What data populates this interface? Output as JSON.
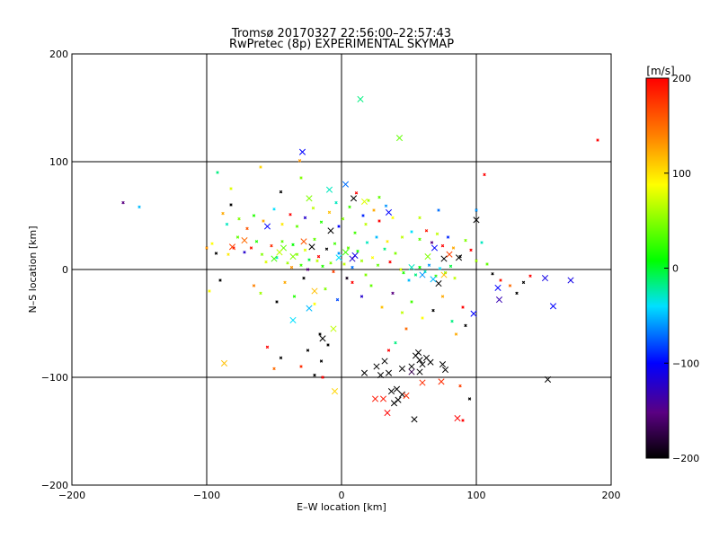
{
  "chart_data": {
    "type": "scatter",
    "title_line1": "Tromsø 20170327 22:56:00–22:57:43",
    "title_line2": "RwPretec (8p) EXPERIMENTAL SKYMAP",
    "xlabel": "E–W location [km]",
    "ylabel": "N–S location [km]",
    "xlim": [
      -200,
      200
    ],
    "ylim": [
      -200,
      200
    ],
    "xticks": [
      -200,
      -100,
      0,
      100,
      200
    ],
    "yticks": [
      -200,
      -100,
      0,
      100,
      200
    ],
    "grid": true,
    "colorbar": {
      "label": "[m/s]",
      "range": [
        -200,
        200
      ],
      "ticks": [
        200,
        100,
        0,
        -100,
        -200
      ],
      "colormap": [
        "#000000",
        "#5a0082",
        "#0000ff",
        "#00e0ff",
        "#00ff00",
        "#ffff00",
        "#ff8000",
        "#ff0000"
      ]
    },
    "points_large": [
      {
        "x": 14,
        "y": 158,
        "v": -20
      },
      {
        "x": 43,
        "y": 122,
        "v": 30
      },
      {
        "x": -29,
        "y": 109,
        "v": -100
      },
      {
        "x": 3,
        "y": 79,
        "v": -70
      },
      {
        "x": 9,
        "y": 66,
        "v": -200
      },
      {
        "x": -24,
        "y": 66,
        "v": 40
      },
      {
        "x": -9,
        "y": 74,
        "v": -30
      },
      {
        "x": 17,
        "y": 63,
        "v": 70
      },
      {
        "x": 100,
        "y": 46,
        "v": -200
      },
      {
        "x": -55,
        "y": 40,
        "v": -100
      },
      {
        "x": -72,
        "y": 27,
        "v": 150
      },
      {
        "x": -81,
        "y": 21,
        "v": 170
      },
      {
        "x": -43,
        "y": 20,
        "v": 30
      },
      {
        "x": -28,
        "y": 26,
        "v": 160
      },
      {
        "x": -22,
        "y": 21,
        "v": -200
      },
      {
        "x": -8,
        "y": 36,
        "v": -200
      },
      {
        "x": 10,
        "y": 13,
        "v": -110
      },
      {
        "x": 8,
        "y": 10,
        "v": -120
      },
      {
        "x": 69,
        "y": 20,
        "v": -100
      },
      {
        "x": 76,
        "y": 10,
        "v": -200
      },
      {
        "x": 87,
        "y": 11,
        "v": -200
      },
      {
        "x": 76,
        "y": -5,
        "v": 110
      },
      {
        "x": 72,
        "y": -13,
        "v": -200
      },
      {
        "x": 60,
        "y": -5,
        "v": -60
      },
      {
        "x": 80,
        "y": 14,
        "v": 170
      },
      {
        "x": 151,
        "y": -8,
        "v": -110
      },
      {
        "x": 170,
        "y": -10,
        "v": -110
      },
      {
        "x": 157,
        "y": -34,
        "v": -100
      },
      {
        "x": -20,
        "y": -20,
        "v": 110
      },
      {
        "x": -24,
        "y": -36,
        "v": -50
      },
      {
        "x": -36,
        "y": -47,
        "v": -40
      },
      {
        "x": -6,
        "y": -55,
        "v": 60
      },
      {
        "x": -14,
        "y": -64,
        "v": -200
      },
      {
        "x": -87,
        "y": -87,
        "v": 110
      },
      {
        "x": -5,
        "y": -113,
        "v": 100
      },
      {
        "x": 32,
        "y": -85,
        "v": -200
      },
      {
        "x": 26,
        "y": -90,
        "v": -200
      },
      {
        "x": 17,
        "y": -96,
        "v": -200
      },
      {
        "x": 29,
        "y": -98,
        "v": -200
      },
      {
        "x": 35,
        "y": -96,
        "v": -200
      },
      {
        "x": 45,
        "y": -92,
        "v": -200
      },
      {
        "x": 52,
        "y": -90,
        "v": -200
      },
      {
        "x": 55,
        "y": -80,
        "v": -200
      },
      {
        "x": 58,
        "y": -84,
        "v": -200
      },
      {
        "x": 60,
        "y": -88,
        "v": -200
      },
      {
        "x": 63,
        "y": -82,
        "v": -200
      },
      {
        "x": 66,
        "y": -86,
        "v": -200
      },
      {
        "x": 58,
        "y": -95,
        "v": -200
      },
      {
        "x": 52,
        "y": -95,
        "v": -170
      },
      {
        "x": 57,
        "y": -77,
        "v": -200
      },
      {
        "x": 75,
        "y": -88,
        "v": -200
      },
      {
        "x": 77,
        "y": -93,
        "v": -200
      },
      {
        "x": 74,
        "y": -104,
        "v": 180
      },
      {
        "x": 41,
        "y": -111,
        "v": -200
      },
      {
        "x": 42,
        "y": -121,
        "v": -200
      },
      {
        "x": 39,
        "y": -124,
        "v": -200
      },
      {
        "x": 45,
        "y": -116,
        "v": -200
      },
      {
        "x": 37,
        "y": -113,
        "v": -200
      },
      {
        "x": 31,
        "y": -120,
        "v": 190
      },
      {
        "x": 25,
        "y": -120,
        "v": 190
      },
      {
        "x": 34,
        "y": -133,
        "v": 200
      },
      {
        "x": 54,
        "y": -139,
        "v": -200
      },
      {
        "x": 86,
        "y": -138,
        "v": 200
      },
      {
        "x": 48,
        "y": -117,
        "v": 180
      },
      {
        "x": 60,
        "y": -105,
        "v": 180
      },
      {
        "x": 153,
        "y": -102,
        "v": -200
      },
      {
        "x": -36,
        "y": 12,
        "v": 40
      },
      {
        "x": -46,
        "y": 16,
        "v": 60
      },
      {
        "x": -50,
        "y": 10,
        "v": 20
      },
      {
        "x": 3,
        "y": 16,
        "v": 20
      },
      {
        "x": -2,
        "y": 11,
        "v": -40
      },
      {
        "x": 68,
        "y": -9,
        "v": -50
      },
      {
        "x": 52,
        "y": 2,
        "v": -30
      },
      {
        "x": 64,
        "y": 12,
        "v": 40
      },
      {
        "x": 98,
        "y": -41,
        "v": -100
      },
      {
        "x": 116,
        "y": -17,
        "v": -100
      },
      {
        "x": 117,
        "y": -28,
        "v": -130
      },
      {
        "x": 35,
        "y": 53,
        "v": -100
      }
    ],
    "points_small": [
      {
        "x": -162,
        "y": 62,
        "v": -150
      },
      {
        "x": -150,
        "y": 58,
        "v": -50
      },
      {
        "x": 190,
        "y": 120,
        "v": 200
      },
      {
        "x": 106,
        "y": 88,
        "v": 200
      },
      {
        "x": -31,
        "y": 101,
        "v": 130
      },
      {
        "x": -100,
        "y": 20,
        "v": 130
      },
      {
        "x": -96,
        "y": 24,
        "v": 80
      },
      {
        "x": -93,
        "y": 15,
        "v": -200
      },
      {
        "x": -84,
        "y": 14,
        "v": 90
      },
      {
        "x": -80,
        "y": 20,
        "v": 200
      },
      {
        "x": -77,
        "y": 30,
        "v": 30
      },
      {
        "x": -72,
        "y": 16,
        "v": -120
      },
      {
        "x": -67,
        "y": 20,
        "v": 190
      },
      {
        "x": -63,
        "y": 26,
        "v": 10
      },
      {
        "x": -59,
        "y": 14,
        "v": 40
      },
      {
        "x": -56,
        "y": 7,
        "v": 70
      },
      {
        "x": -52,
        "y": 22,
        "v": 180
      },
      {
        "x": -48,
        "y": 11,
        "v": -30
      },
      {
        "x": -44,
        "y": 26,
        "v": 30
      },
      {
        "x": -40,
        "y": 6,
        "v": 50
      },
      {
        "x": -36,
        "y": 23,
        "v": 0
      },
      {
        "x": -33,
        "y": 14,
        "v": 40
      },
      {
        "x": -30,
        "y": 4,
        "v": 20
      },
      {
        "x": -27,
        "y": 18,
        "v": 70
      },
      {
        "x": -24,
        "y": 9,
        "v": -10
      },
      {
        "x": -20,
        "y": 28,
        "v": 30
      },
      {
        "x": -17,
        "y": 12,
        "v": 200
      },
      {
        "x": -14,
        "y": 3,
        "v": 10
      },
      {
        "x": -11,
        "y": 19,
        "v": -200
      },
      {
        "x": -8,
        "y": 6,
        "v": 40
      },
      {
        "x": -5,
        "y": 24,
        "v": 20
      },
      {
        "x": -2,
        "y": 15,
        "v": -60
      },
      {
        "x": 2,
        "y": 5,
        "v": 60
      },
      {
        "x": 5,
        "y": 20,
        "v": 30
      },
      {
        "x": 8,
        "y": 2,
        "v": -70
      },
      {
        "x": 12,
        "y": 17,
        "v": 10
      },
      {
        "x": 15,
        "y": 8,
        "v": 50
      },
      {
        "x": 19,
        "y": 25,
        "v": -30
      },
      {
        "x": 23,
        "y": 11,
        "v": 80
      },
      {
        "x": 27,
        "y": 4,
        "v": 30
      },
      {
        "x": 32,
        "y": 19,
        "v": -20
      },
      {
        "x": 36,
        "y": 7,
        "v": 200
      },
      {
        "x": 40,
        "y": 15,
        "v": 40
      },
      {
        "x": -88,
        "y": 52,
        "v": 120
      },
      {
        "x": -82,
        "y": 60,
        "v": -200
      },
      {
        "x": -76,
        "y": 47,
        "v": 40
      },
      {
        "x": -70,
        "y": 38,
        "v": 160
      },
      {
        "x": -65,
        "y": 50,
        "v": 10
      },
      {
        "x": -58,
        "y": 45,
        "v": 120
      },
      {
        "x": -50,
        "y": 56,
        "v": -40
      },
      {
        "x": -44,
        "y": 42,
        "v": 90
      },
      {
        "x": -38,
        "y": 51,
        "v": 200
      },
      {
        "x": -33,
        "y": 40,
        "v": 30
      },
      {
        "x": -27,
        "y": 48,
        "v": -120
      },
      {
        "x": -21,
        "y": 57,
        "v": 60
      },
      {
        "x": -15,
        "y": 44,
        "v": 10
      },
      {
        "x": -9,
        "y": 53,
        "v": 110
      },
      {
        "x": -4,
        "y": 62,
        "v": -30
      },
      {
        "x": 1,
        "y": 47,
        "v": 40
      },
      {
        "x": 6,
        "y": 58,
        "v": 20
      },
      {
        "x": 11,
        "y": 71,
        "v": 200
      },
      {
        "x": 16,
        "y": 50,
        "v": -90
      },
      {
        "x": 20,
        "y": 64,
        "v": 50
      },
      {
        "x": 24,
        "y": 55,
        "v": 120
      },
      {
        "x": 28,
        "y": 67,
        "v": 30
      },
      {
        "x": 33,
        "y": 59,
        "v": -60
      },
      {
        "x": 38,
        "y": 48,
        "v": 80
      },
      {
        "x": 45,
        "y": 30,
        "v": 60
      },
      {
        "x": 52,
        "y": 35,
        "v": -40
      },
      {
        "x": 58,
        "y": 28,
        "v": 30
      },
      {
        "x": 63,
        "y": 36,
        "v": 190
      },
      {
        "x": 67,
        "y": 25,
        "v": -150
      },
      {
        "x": 71,
        "y": 33,
        "v": 60
      },
      {
        "x": 75,
        "y": 22,
        "v": 200
      },
      {
        "x": 79,
        "y": 30,
        "v": -90
      },
      {
        "x": 83,
        "y": 20,
        "v": 120
      },
      {
        "x": 88,
        "y": 12,
        "v": -200
      },
      {
        "x": 92,
        "y": 27,
        "v": 40
      },
      {
        "x": 96,
        "y": 18,
        "v": 200
      },
      {
        "x": 100,
        "y": 8,
        "v": 50
      },
      {
        "x": 104,
        "y": 25,
        "v": -30
      },
      {
        "x": 108,
        "y": 5,
        "v": 30
      },
      {
        "x": 112,
        "y": -4,
        "v": -200
      },
      {
        "x": 118,
        "y": -10,
        "v": 190
      },
      {
        "x": 125,
        "y": -15,
        "v": 150
      },
      {
        "x": 55,
        "y": -5,
        "v": -20
      },
      {
        "x": 58,
        "y": 2,
        "v": 0
      },
      {
        "x": 62,
        "y": -2,
        "v": -30
      },
      {
        "x": 65,
        "y": 4,
        "v": -60
      },
      {
        "x": 70,
        "y": -6,
        "v": 20
      },
      {
        "x": 73,
        "y": 1,
        "v": -40
      },
      {
        "x": 77,
        "y": -3,
        "v": 40
      },
      {
        "x": 81,
        "y": 3,
        "v": -10
      },
      {
        "x": 84,
        "y": -8,
        "v": 60
      },
      {
        "x": 50,
        "y": -10,
        "v": -50
      },
      {
        "x": 46,
        "y": -3,
        "v": 10
      },
      {
        "x": -65,
        "y": -15,
        "v": 140
      },
      {
        "x": -60,
        "y": -22,
        "v": 50
      },
      {
        "x": -48,
        "y": -30,
        "v": -200
      },
      {
        "x": -42,
        "y": -12,
        "v": 120
      },
      {
        "x": -35,
        "y": -25,
        "v": 10
      },
      {
        "x": -28,
        "y": -8,
        "v": -200
      },
      {
        "x": -20,
        "y": -32,
        "v": 80
      },
      {
        "x": -12,
        "y": -18,
        "v": 40
      },
      {
        "x": -3,
        "y": -28,
        "v": -80
      },
      {
        "x": 8,
        "y": -12,
        "v": 200
      },
      {
        "x": 15,
        "y": -25,
        "v": -120
      },
      {
        "x": 22,
        "y": -15,
        "v": 30
      },
      {
        "x": 30,
        "y": -35,
        "v": 110
      },
      {
        "x": 38,
        "y": -22,
        "v": -150
      },
      {
        "x": 45,
        "y": -40,
        "v": 60
      },
      {
        "x": 52,
        "y": -30,
        "v": 20
      },
      {
        "x": 60,
        "y": -45,
        "v": 80
      },
      {
        "x": 68,
        "y": -38,
        "v": -200
      },
      {
        "x": 75,
        "y": -25,
        "v": 120
      },
      {
        "x": 82,
        "y": -48,
        "v": -20
      },
      {
        "x": 90,
        "y": -35,
        "v": 200
      },
      {
        "x": -10,
        "y": -70,
        "v": -200
      },
      {
        "x": -15,
        "y": -85,
        "v": -200
      },
      {
        "x": -20,
        "y": -98,
        "v": -200
      },
      {
        "x": -25,
        "y": -75,
        "v": -200
      },
      {
        "x": -30,
        "y": -90,
        "v": 180
      },
      {
        "x": -45,
        "y": -82,
        "v": -200
      },
      {
        "x": -50,
        "y": -92,
        "v": 150
      },
      {
        "x": -55,
        "y": -72,
        "v": 200
      },
      {
        "x": -16,
        "y": -60,
        "v": -200
      },
      {
        "x": -14,
        "y": -100,
        "v": 200
      },
      {
        "x": 35,
        "y": -75,
        "v": 200
      },
      {
        "x": 40,
        "y": -68,
        "v": -20
      },
      {
        "x": 48,
        "y": -55,
        "v": 150
      },
      {
        "x": 85,
        "y": -60,
        "v": 120
      },
      {
        "x": 92,
        "y": -52,
        "v": -200
      },
      {
        "x": 90,
        "y": -140,
        "v": 200
      },
      {
        "x": 95,
        "y": -120,
        "v": -200
      },
      {
        "x": 88,
        "y": -108,
        "v": 170
      },
      {
        "x": -98,
        "y": -20,
        "v": 80
      },
      {
        "x": -90,
        "y": -10,
        "v": -200
      },
      {
        "x": -85,
        "y": 42,
        "v": -30
      },
      {
        "x": -60,
        "y": 95,
        "v": 100
      },
      {
        "x": -45,
        "y": 72,
        "v": -200
      },
      {
        "x": -30,
        "y": 85,
        "v": 40
      },
      {
        "x": -92,
        "y": 90,
        "v": -20
      },
      {
        "x": -82,
        "y": 75,
        "v": 70
      },
      {
        "x": 28,
        "y": 45,
        "v": 200
      },
      {
        "x": 58,
        "y": 48,
        "v": 60
      },
      {
        "x": 72,
        "y": 55,
        "v": -70
      },
      {
        "x": 100,
        "y": 55,
        "v": -60
      },
      {
        "x": 135,
        "y": -12,
        "v": -200
      },
      {
        "x": 140,
        "y": -6,
        "v": 200
      },
      {
        "x": 130,
        "y": -22,
        "v": -200
      },
      {
        "x": -37,
        "y": 2,
        "v": 130
      },
      {
        "x": -25,
        "y": 0,
        "v": -150
      },
      {
        "x": -18,
        "y": 8,
        "v": 60
      },
      {
        "x": -6,
        "y": -2,
        "v": 170
      },
      {
        "x": 4,
        "y": -8,
        "v": -190
      },
      {
        "x": 18,
        "y": -5,
        "v": 40
      },
      {
        "x": 26,
        "y": 30,
        "v": -50
      },
      {
        "x": 34,
        "y": 26,
        "v": 90
      },
      {
        "x": 10,
        "y": 34,
        "v": 20
      },
      {
        "x": -2,
        "y": 40,
        "v": -100
      },
      {
        "x": 18,
        "y": 42,
        "v": 60
      },
      {
        "x": 44,
        "y": 0,
        "v": 70
      }
    ]
  }
}
